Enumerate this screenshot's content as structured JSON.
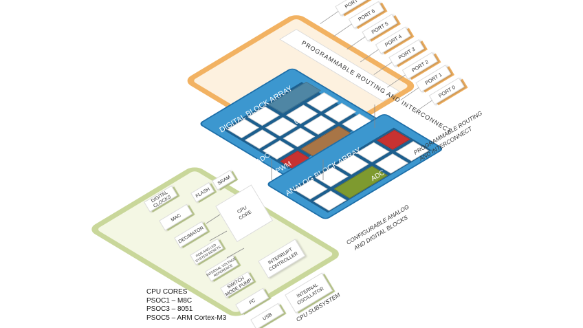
{
  "ports": [
    "PORT 7",
    "PORT 6",
    "PORT 5",
    "PORT 4",
    "PORT 3",
    "PORT 2",
    "PORT 1",
    "PORT 0"
  ],
  "routing": {
    "inner_label": "PROGRAMMABLE ROUTING AND INTERCONNECT",
    "caption_line1": "PROGRAMMABLE ROUTING",
    "caption_line2": "AND INTERCONNECT"
  },
  "digital": {
    "title": "DIGITAL BLOCK ARRAY",
    "uart": "UART",
    "adc": "ADC",
    "pwm": "PWM"
  },
  "analog": {
    "title": "ANALOG BLOCK ARRAY",
    "adc": "ADC",
    "filter": "FILTER",
    "caption_line1": "CONFIGURABLE ANALOG",
    "caption_line2": "AND DIGITAL BLOCKS"
  },
  "cpu": {
    "flash": "FLASH",
    "sram": "SRAM",
    "core_line1": "CPU",
    "core_line2": "CORE",
    "blocks": [
      {
        "line1": "DIGITAL",
        "line2": "CLOCKS"
      },
      {
        "line1": "MAC",
        "line2": ""
      },
      {
        "line1": "DECIMATOR",
        "line2": ""
      },
      {
        "line1": "POR AND LVD",
        "line2": "SYSTEM RESETS"
      },
      {
        "line1": "INTERNAL VOLTAGE",
        "line2": "REFERENCE"
      },
      {
        "line1": "SWITCH",
        "line2": "MODE PUMP"
      },
      {
        "line1": "I²C",
        "line2": ""
      },
      {
        "line1": "USB",
        "line2": ""
      }
    ],
    "interrupt_line1": "INTERRUPT",
    "interrupt_line2": "CONTROLLER",
    "osc_line1": "INTERNAL",
    "osc_line2": "OSCILLATOR",
    "caption": "CPU SUBSYSTEM"
  },
  "legend": {
    "title": "CPU CORES",
    "lines": [
      "PSOC1 – M8C",
      "PSOC3 – 8051",
      "PSOC5 – ARM Cortex-M3"
    ]
  },
  "colors": {
    "routing_border": "#f2b262",
    "routing_fill": "#fdf1df",
    "block_blue": "#3c97cf",
    "block_blue_dark": "#1d6ea8",
    "cpu_border": "#c9d79a",
    "cpu_fill": "#f4f7e4",
    "uart": "#4f86a4",
    "adc": "#c83231",
    "pwm": "#a87546",
    "filter": "#7e9a2f"
  }
}
